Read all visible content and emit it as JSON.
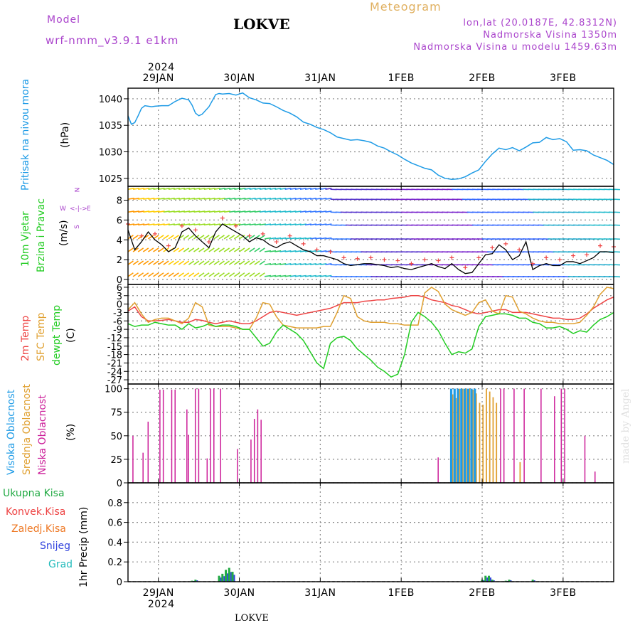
{
  "header": {
    "model_label": "Model",
    "model_name": "wrf-nmm_v3.9.1  e1km",
    "station_title": "LOKVE",
    "meteogram_title": "Meteogram",
    "lonlat": "lon,lat (20.0187E, 42.8312N)",
    "elevation": "Nadmorska Visina 1350m",
    "model_elevation": "Nadmorska Visina u modelu 1459.63m",
    "footer_station": "LOKVE",
    "watermark": "made by Angel",
    "year_top": "2024",
    "year_bottom": "2024"
  },
  "colors": {
    "pressure": "#1e9be6",
    "temp2m": "#ee4444",
    "sfc_temp": "#e0a030",
    "dewpt": "#22cc22",
    "high_cloud": "#1e9be6",
    "mid_cloud": "#e0a030",
    "low_cloud": "#cc1e99",
    "total_precip": "#22aa44",
    "conv_precip": "#ee4444",
    "frozen_precip": "#ee7722",
    "snow": "#3344dd",
    "graupel": "#22bbbb"
  },
  "panel_labels": {
    "pressure": {
      "name": "Pritisak na nivou mora",
      "unit": "(hPa)"
    },
    "wind": {
      "name1": "10m Vjetar",
      "name2": "Brzina i Pravac",
      "unit": "(m/s)",
      "compass_w": "W",
      "compass_e": "E",
      "compass_n": "N",
      "compass_s": "S"
    },
    "temp": {
      "t2m": "2m Temp",
      "sfc": "SFC Temp",
      "dew": "dewpt Temp",
      "unit": "(C)"
    },
    "cloud": {
      "high": "Visoka Oblacnost",
      "mid": "Srednja Oblacnost",
      "low": "Niska Oblacnost",
      "unit": "(%)"
    },
    "precip": {
      "total": "Ukupna Kisa",
      "conv": "Konvek.Kisa",
      "frozen": "Zaledj.Kisa",
      "snow": "Snijeg",
      "graupel": "Grad",
      "unit": "1hr Precip (mm)"
    }
  },
  "chart_data": [
    {
      "type": "line",
      "name": "pressure",
      "x_unit": "hours since 2024-01-28 15 UTC",
      "x_range": [
        0,
        144
      ],
      "day_ticks": [
        "29JAN",
        "30JAN",
        "31JAN",
        "1FEB",
        "2FEB",
        "3FEB"
      ],
      "day_tick_x": [
        9,
        33,
        57,
        81,
        105,
        129
      ],
      "ylim": [
        1023.5,
        1042
      ],
      "yticks": [
        1025,
        1030,
        1035,
        1040
      ],
      "series": [
        {
          "x": [
            0,
            1,
            2,
            3,
            4,
            5,
            6,
            7,
            8,
            10,
            12,
            14,
            16,
            18,
            19,
            20,
            21,
            22,
            24,
            26,
            27,
            28,
            30,
            32,
            34,
            36,
            38,
            40,
            42,
            44,
            46,
            48,
            50,
            52,
            54,
            56,
            58,
            60,
            62,
            64,
            66,
            68,
            70,
            72,
            74,
            76,
            78,
            80,
            82,
            84,
            86,
            88,
            90,
            92,
            94,
            96,
            98,
            100,
            102,
            104,
            106,
            108,
            110,
            112,
            114,
            116,
            118,
            120,
            122,
            124,
            126,
            128,
            130,
            132,
            134,
            136,
            138,
            140,
            142,
            144
          ],
          "y": [
            1036.8,
            1035.2,
            1035.5,
            1036.8,
            1038.2,
            1038.7,
            1038.6,
            1038.5,
            1038.6,
            1038.7,
            1038.7,
            1039.5,
            1040.1,
            1039.8,
            1038.8,
            1037.3,
            1036.8,
            1037.1,
            1038.5,
            1040.8,
            1041.0,
            1040.9,
            1041.0,
            1040.7,
            1041.1,
            1040.2,
            1039.8,
            1039.2,
            1039.1,
            1038.5,
            1037.8,
            1037.3,
            1036.6,
            1035.6,
            1035.2,
            1034.6,
            1034.2,
            1033.6,
            1032.8,
            1032.5,
            1032.2,
            1032.3,
            1032.1,
            1031.8,
            1031.1,
            1030.7,
            1030.0,
            1029.4,
            1028.6,
            1027.9,
            1027.4,
            1026.9,
            1026.6,
            1025.6,
            1025.0,
            1024.8,
            1024.9,
            1025.3,
            1026.0,
            1026.6,
            1028.2,
            1029.6,
            1030.7,
            1030.4,
            1030.8,
            1030.2,
            1030.9,
            1031.7,
            1031.8,
            1032.7,
            1032.3,
            1032.5,
            1031.9,
            1030.3,
            1030.4,
            1030.2,
            1029.4,
            1028.9,
            1028.4,
            1027.6
          ]
        }
      ]
    },
    {
      "type": "line",
      "name": "wind",
      "ylim": [
        -0.5,
        9.4
      ],
      "yticks": [
        0,
        2,
        4,
        6,
        8
      ],
      "series": [
        {
          "name": "speed",
          "x": [
            0,
            2,
            4,
            6,
            8,
            10,
            12,
            14,
            16,
            18,
            20,
            22,
            24,
            26,
            28,
            30,
            32,
            34,
            36,
            38,
            40,
            42,
            44,
            46,
            48,
            50,
            52,
            54,
            56,
            58,
            60,
            62,
            64,
            66,
            68,
            70,
            72,
            74,
            76,
            78,
            80,
            82,
            84,
            86,
            88,
            90,
            92,
            94,
            96,
            98,
            100,
            102,
            104,
            106,
            108,
            110,
            112,
            114,
            116,
            118,
            120,
            122,
            124,
            126,
            128,
            130,
            132,
            134,
            136,
            138,
            140,
            142,
            144
          ],
          "y": [
            5.0,
            3.0,
            3.8,
            4.8,
            4.0,
            3.5,
            2.8,
            3.2,
            4.8,
            5.2,
            4.4,
            3.8,
            3.2,
            4.8,
            5.6,
            5.2,
            4.8,
            4.4,
            3.8,
            4.2,
            4.0,
            3.5,
            3.2,
            3.6,
            3.8,
            3.4,
            3.0,
            2.8,
            2.4,
            2.4,
            2.2,
            2.0,
            1.6,
            1.4,
            1.5,
            1.6,
            1.6,
            1.5,
            1.4,
            1.2,
            1.3,
            1.1,
            1.0,
            1.2,
            1.4,
            1.6,
            1.3,
            1.1,
            1.6,
            1.0,
            0.6,
            0.7,
            1.6,
            2.5,
            2.6,
            3.5,
            3.0,
            2.0,
            2.4,
            3.8,
            1.0,
            1.4,
            1.6,
            1.4,
            1.4,
            1.8,
            1.8,
            1.6,
            1.9,
            2.2,
            2.8,
            2.8,
            2.7
          ]
        }
      ]
    },
    {
      "type": "line",
      "name": "temperature",
      "ylim": [
        -28.5,
        7
      ],
      "yticks": [
        6,
        3,
        0,
        -3,
        -6,
        -9,
        -12,
        -15,
        -18,
        -21,
        -24,
        -27
      ],
      "series": [
        {
          "name": "2m Temp",
          "x": [
            0,
            2,
            4,
            6,
            8,
            10,
            12,
            14,
            16,
            18,
            20,
            22,
            24,
            26,
            28,
            30,
            32,
            34,
            36,
            38,
            40,
            42,
            44,
            46,
            48,
            50,
            52,
            54,
            56,
            58,
            60,
            62,
            64,
            66,
            68,
            70,
            72,
            74,
            76,
            78,
            80,
            82,
            84,
            86,
            88,
            90,
            92,
            94,
            96,
            98,
            100,
            102,
            104,
            106,
            108,
            110,
            112,
            114,
            116,
            118,
            120,
            122,
            124,
            126,
            128,
            130,
            132,
            134,
            136,
            138,
            140,
            142,
            144
          ],
          "y": [
            -2.5,
            -1.0,
            -4.5,
            -6.0,
            -6.0,
            -5.8,
            -5.5,
            -6.0,
            -6.5,
            -6.5,
            -5.5,
            -5.8,
            -6.5,
            -7.0,
            -6.5,
            -6.0,
            -6.5,
            -7.0,
            -7.0,
            -6.0,
            -4.5,
            -3.0,
            -2.5,
            -3.0,
            -3.5,
            -4.0,
            -3.5,
            -3.0,
            -2.5,
            -2.0,
            -1.5,
            -0.5,
            0.5,
            0.5,
            0.5,
            1.0,
            1.2,
            1.5,
            1.5,
            2.0,
            2.2,
            2.5,
            3.0,
            3.0,
            2.5,
            1.5,
            1.0,
            0.5,
            -0.5,
            -1.0,
            -2.0,
            -3.0,
            -3.5,
            -3.0,
            -2.5,
            -2.0,
            -2.0,
            -3.0,
            -3.0,
            -3.0,
            -3.5,
            -4.0,
            -4.5,
            -5.0,
            -5.0,
            -5.5,
            -5.5,
            -5.0,
            -3.5,
            -1.5,
            0.0,
            1.5,
            2.5
          ]
        },
        {
          "name": "SFC Temp",
          "x": [
            0,
            2,
            4,
            6,
            8,
            10,
            12,
            14,
            16,
            18,
            20,
            22,
            24,
            26,
            28,
            30,
            32,
            34,
            36,
            38,
            40,
            42,
            44,
            46,
            48,
            50,
            52,
            54,
            56,
            58,
            60,
            62,
            64,
            66,
            68,
            70,
            72,
            74,
            76,
            78,
            80,
            82,
            84,
            86,
            88,
            90,
            92,
            94,
            96,
            98,
            100,
            102,
            104,
            106,
            108,
            110,
            112,
            114,
            116,
            118,
            120,
            122,
            124,
            126,
            128,
            130,
            132,
            134,
            136,
            138,
            140,
            142,
            144
          ],
          "y": [
            -2.0,
            0.5,
            -3.5,
            -6.5,
            -5.5,
            -5.0,
            -5.0,
            -6.0,
            -7.0,
            -5.0,
            0.5,
            -1.0,
            -7.5,
            -8.0,
            -8.0,
            -8.0,
            -8.5,
            -9.0,
            -9.0,
            -5.0,
            0.5,
            0.0,
            -4.5,
            -7.5,
            -8.0,
            -8.5,
            -8.5,
            -8.5,
            -8.5,
            -8.0,
            -8.0,
            -3.0,
            3.0,
            2.0,
            -4.5,
            -6.0,
            -6.5,
            -6.5,
            -6.5,
            -7.0,
            -7.0,
            -7.5,
            -7.5,
            -7.5,
            4.0,
            6.0,
            4.5,
            0.0,
            -2.0,
            -3.0,
            -4.0,
            -3.0,
            0.5,
            1.5,
            -2.5,
            -3.5,
            3.0,
            2.5,
            -2.5,
            -3.5,
            -5.0,
            -6.0,
            -6.5,
            -6.5,
            -7.0,
            -7.0,
            -7.0,
            -6.5,
            -4.0,
            -1.0,
            3.5,
            6.0,
            5.5
          ]
        },
        {
          "name": "dewpt Temp",
          "x": [
            0,
            2,
            4,
            6,
            8,
            10,
            12,
            14,
            16,
            18,
            20,
            22,
            24,
            26,
            28,
            30,
            32,
            34,
            36,
            38,
            40,
            42,
            44,
            46,
            48,
            50,
            52,
            54,
            56,
            58,
            60,
            62,
            64,
            66,
            68,
            70,
            72,
            74,
            76,
            78,
            80,
            82,
            84,
            86,
            88,
            90,
            92,
            94,
            96,
            98,
            100,
            102,
            104,
            106,
            108,
            110,
            112,
            114,
            116,
            118,
            120,
            122,
            124,
            126,
            128,
            130,
            132,
            134,
            136,
            138,
            140,
            142,
            144
          ],
          "y": [
            -7.0,
            -8.0,
            -7.5,
            -7.5,
            -6.5,
            -7.0,
            -7.5,
            -7.5,
            -9.0,
            -7.0,
            -8.5,
            -8.0,
            -7.0,
            -8.0,
            -7.5,
            -7.5,
            -8.0,
            -9.0,
            -9.0,
            -12.0,
            -15.0,
            -14.0,
            -10.0,
            -7.5,
            -9.0,
            -10.5,
            -13.0,
            -17.0,
            -21.0,
            -23.0,
            -14.0,
            -12.0,
            -11.5,
            -13.0,
            -16.0,
            -18.0,
            -20.0,
            -22.5,
            -24.0,
            -26.0,
            -25.0,
            -18.0,
            -6.5,
            -3.0,
            -4.5,
            -6.5,
            -9.5,
            -14.0,
            -18.0,
            -17.0,
            -17.5,
            -16.0,
            -8.0,
            -4.5,
            -4.0,
            -3.5,
            -3.5,
            -4.0,
            -5.0,
            -5.0,
            -6.5,
            -7.0,
            -8.5,
            -8.5,
            -8.0,
            -9.0,
            -10.5,
            -9.5,
            -10.0,
            -7.5,
            -5.5,
            -4.5,
            -3.0
          ]
        }
      ]
    },
    {
      "type": "bar",
      "name": "cloud",
      "ylim": [
        0,
        105
      ],
      "yticks": [
        0,
        25,
        50,
        75,
        100
      ],
      "series": [
        {
          "name": "Niska Oblacnost",
          "x": [
            1,
            4,
            5.5,
            9,
            10,
            12.5,
            13.5,
            17,
            17.5,
            19.5,
            20.5,
            23,
            24,
            25,
            27,
            32,
            36,
            37,
            38,
            39,
            91.5,
            110,
            111,
            114,
            117,
            122,
            126,
            128,
            129,
            135,
            138
          ],
          "y": [
            50,
            32,
            65,
            99,
            99,
            99,
            99,
            78,
            51,
            100,
            100,
            26,
            100,
            100,
            100,
            36,
            46,
            68,
            78,
            67,
            27,
            100,
            100,
            100,
            100,
            100,
            92,
            100,
            100,
            50,
            12
          ]
        },
        {
          "name": "Srednja Oblacnost",
          "x": [
            96,
            97,
            98,
            99,
            100,
            101,
            102,
            103,
            104,
            105,
            106,
            107,
            108,
            109,
            116
          ],
          "y": [
            94,
            90,
            100,
            100,
            100,
            100,
            99,
            95,
            85,
            83,
            100,
            97,
            91,
            85,
            22
          ]
        },
        {
          "name": "Visoka Oblacnost",
          "x": [
            96,
            97,
            98,
            99,
            100,
            101,
            102,
            103
          ],
          "y": [
            100,
            100,
            100,
            100,
            100,
            100,
            100,
            100
          ]
        }
      ]
    },
    {
      "type": "bar",
      "name": "precipitation",
      "ylim": [
        0,
        1.0
      ],
      "yticks": [
        0,
        0.2,
        0.4,
        0.6,
        0.8
      ],
      "series": [
        {
          "name": "Ukupna Kisa",
          "x": [
            19,
            20,
            27,
            28,
            29,
            30,
            31,
            105,
            106,
            107,
            108,
            112,
            113,
            120
          ],
          "y": [
            0.01,
            0.02,
            0.06,
            0.08,
            0.12,
            0.14,
            0.1,
            0.02,
            0.06,
            0.06,
            0.02,
            0.01,
            0.02,
            0.02
          ]
        }
      ]
    }
  ]
}
